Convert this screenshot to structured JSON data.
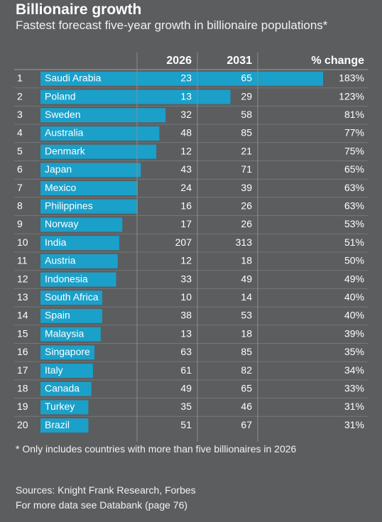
{
  "header": {
    "title": "Billionaire growth",
    "subtitle": "Fastest forecast five-year growth in billionaire populations*"
  },
  "table": {
    "columns": [
      "2026",
      "2031",
      "% change"
    ],
    "rows": [
      {
        "rank": 1,
        "country": "Saudi Arabia",
        "y2026": 23,
        "y2031": 65,
        "change": {
          "value": 183,
          "label": "183%"
        }
      },
      {
        "rank": 2,
        "country": "Poland",
        "y2026": 13,
        "y2031": 29,
        "change": {
          "value": 123,
          "label": "123%"
        }
      },
      {
        "rank": 3,
        "country": "Sweden",
        "y2026": 32,
        "y2031": 58,
        "change": {
          "value": 81,
          "label": "81%"
        }
      },
      {
        "rank": 4,
        "country": "Australia",
        "y2026": 48,
        "y2031": 85,
        "change": {
          "value": 77,
          "label": "77%"
        }
      },
      {
        "rank": 5,
        "country": "Denmark",
        "y2026": 12,
        "y2031": 21,
        "change": {
          "value": 75,
          "label": "75%"
        }
      },
      {
        "rank": 6,
        "country": "Japan",
        "y2026": 43,
        "y2031": 71,
        "change": {
          "value": 65,
          "label": "65%"
        }
      },
      {
        "rank": 7,
        "country": "Mexico",
        "y2026": 24,
        "y2031": 39,
        "change": {
          "value": 63,
          "label": "63%"
        }
      },
      {
        "rank": 8,
        "country": "Philippines",
        "y2026": 16,
        "y2031": 26,
        "change": {
          "value": 63,
          "label": "63%"
        }
      },
      {
        "rank": 9,
        "country": "Norway",
        "y2026": 17,
        "y2031": 26,
        "change": {
          "value": 53,
          "label": "53%"
        }
      },
      {
        "rank": 10,
        "country": "India",
        "y2026": 207,
        "y2031": 313,
        "change": {
          "value": 51,
          "label": "51%"
        }
      },
      {
        "rank": 11,
        "country": "Austria",
        "y2026": 12,
        "y2031": 18,
        "change": {
          "value": 50,
          "label": "50%"
        }
      },
      {
        "rank": 12,
        "country": "Indonesia",
        "y2026": 33,
        "y2031": 49,
        "change": {
          "value": 49,
          "label": "49%"
        }
      },
      {
        "rank": 13,
        "country": "South Africa",
        "y2026": 10,
        "y2031": 14,
        "change": {
          "value": 40,
          "label": "40%"
        }
      },
      {
        "rank": 14,
        "country": "Spain",
        "y2026": 38,
        "y2031": 53,
        "change": {
          "value": 40,
          "label": "40%"
        }
      },
      {
        "rank": 15,
        "country": "Malaysia",
        "y2026": 13,
        "y2031": 18,
        "change": {
          "value": 39,
          "label": "39%"
        }
      },
      {
        "rank": 16,
        "country": "Singapore",
        "y2026": 63,
        "y2031": 85,
        "change": {
          "value": 35,
          "label": "35%"
        }
      },
      {
        "rank": 17,
        "country": "Italy",
        "y2026": 61,
        "y2031": 82,
        "change": {
          "value": 34,
          "label": "34%"
        }
      },
      {
        "rank": 18,
        "country": "Canada",
        "y2026": 49,
        "y2031": 65,
        "change": {
          "value": 33,
          "label": "33%"
        }
      },
      {
        "rank": 19,
        "country": "Turkey",
        "y2026": 35,
        "y2031": 46,
        "change": {
          "value": 31,
          "label": "31%"
        }
      },
      {
        "rank": 20,
        "country": "Brazil",
        "y2026": 51,
        "y2031": 67,
        "change": {
          "value": 31,
          "label": "31%"
        }
      }
    ]
  },
  "footer": {
    "footnote": "* Only includes countries with more than five billionaires in 2026",
    "sources": "Sources: Knight Frank Research, Forbes",
    "more": "For more data see Databank (page 76)"
  }
}
